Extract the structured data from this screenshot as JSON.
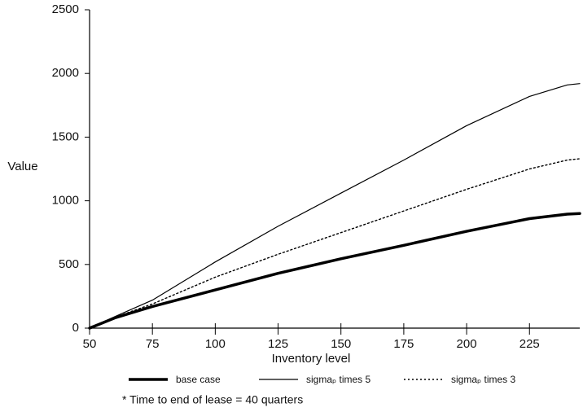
{
  "chart_data": {
    "type": "line",
    "x_label": "Inventory level",
    "y_label": "Value",
    "x": [
      50,
      60,
      75,
      100,
      125,
      150,
      175,
      200,
      225,
      240,
      245
    ],
    "series": [
      {
        "name": "base case",
        "color": "#000000",
        "style": "thick",
        "values": [
          0,
          80,
          170,
          300,
          430,
          545,
          650,
          760,
          860,
          895,
          900
        ]
      },
      {
        "name": "sigmaₚ times 5",
        "color": "#000000",
        "style": "thin",
        "values": [
          0,
          90,
          220,
          520,
          800,
          1060,
          1320,
          1590,
          1820,
          1910,
          1920
        ]
      },
      {
        "name": "sigmaₚ times 3",
        "color": "#000000",
        "style": "dotted",
        "values": [
          0,
          85,
          190,
          400,
          580,
          750,
          920,
          1090,
          1250,
          1320,
          1330
        ]
      }
    ],
    "xlim": [
      50,
      245
    ],
    "xticks": [
      50,
      75,
      100,
      125,
      150,
      175,
      200,
      225
    ],
    "ylim": [
      0,
      2500
    ],
    "yticks": [
      0,
      500,
      1000,
      1500,
      2000,
      2500
    ],
    "grid": false,
    "footnote": "* Time to end of lease = 40 quarters"
  }
}
